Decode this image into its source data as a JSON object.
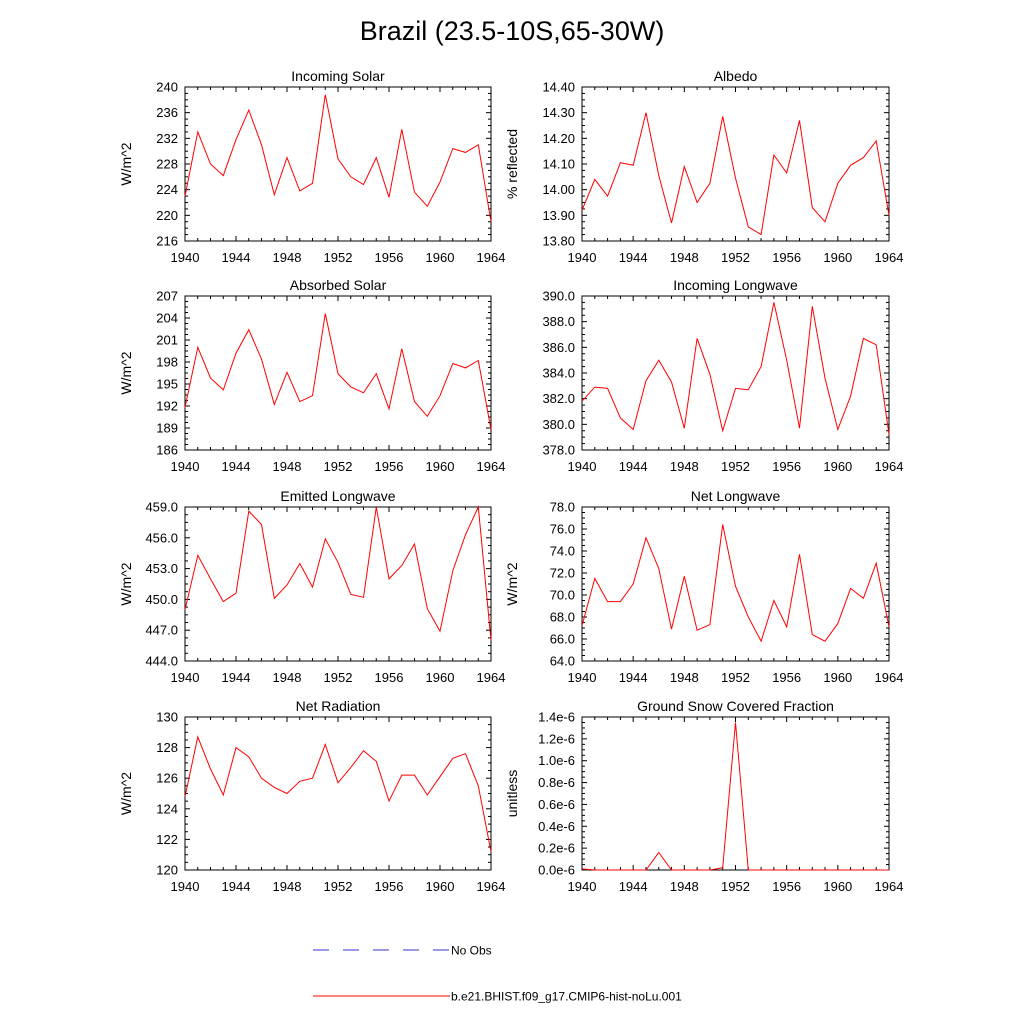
{
  "figure": {
    "title": "Brazil (23.5-10S,65-30W)"
  },
  "legend": {
    "items": [
      {
        "label": "No Obs",
        "color": "#3333cc",
        "style": "dashed"
      },
      {
        "label": "b.e21.BHIST.f09_g17.CMIP6-hist-noLu.001",
        "color": "#ff0000",
        "style": "solid"
      }
    ]
  },
  "chart_data": [
    {
      "type": "line",
      "title": "Incoming Solar",
      "ylabel": "W/m^2",
      "xlabel": "",
      "xlim": [
        1940,
        1964
      ],
      "ylim": [
        216,
        240
      ],
      "xticks": [
        1940,
        1944,
        1948,
        1952,
        1956,
        1960,
        1964
      ],
      "yticks": [
        "216",
        "220",
        "224",
        "228",
        "232",
        "236",
        "240"
      ],
      "grid": false,
      "x": [
        1940,
        1941,
        1942,
        1943,
        1944,
        1945,
        1946,
        1947,
        1948,
        1949,
        1950,
        1951,
        1952,
        1953,
        1954,
        1955,
        1956,
        1957,
        1958,
        1959,
        1960,
        1961,
        1962,
        1963,
        1964
      ],
      "series": [
        {
          "values": [
            223.0,
            233.0,
            228.0,
            226.2,
            231.8,
            236.4,
            231.0,
            223.2,
            229.0,
            223.8,
            225.0,
            238.8,
            228.8,
            226.0,
            224.8,
            229.0,
            222.8,
            233.4,
            223.6,
            221.4,
            225.2,
            230.4,
            229.8,
            231.0,
            219.0
          ]
        }
      ]
    },
    {
      "type": "line",
      "title": "Albedo",
      "ylabel": "% reflected",
      "xlabel": "",
      "xlim": [
        1940,
        1964
      ],
      "ylim": [
        13.8,
        14.4
      ],
      "xticks": [
        1940,
        1944,
        1948,
        1952,
        1956,
        1960,
        1964
      ],
      "yticks": [
        "13.80",
        "13.90",
        "14.00",
        "14.10",
        "14.20",
        "14.30",
        "14.40"
      ],
      "grid": false,
      "x": [
        1940,
        1941,
        1942,
        1943,
        1944,
        1945,
        1946,
        1947,
        1948,
        1949,
        1950,
        1951,
        1952,
        1953,
        1954,
        1955,
        1956,
        1957,
        1958,
        1959,
        1960,
        1961,
        1962,
        1963,
        1964
      ],
      "series": [
        {
          "values": [
            13.92,
            14.04,
            13.975,
            14.105,
            14.095,
            14.3,
            14.055,
            13.87,
            14.09,
            13.95,
            14.025,
            14.285,
            14.045,
            13.855,
            13.825,
            14.135,
            14.065,
            14.27,
            13.93,
            13.875,
            14.025,
            14.095,
            14.125,
            14.19,
            13.9
          ]
        }
      ]
    },
    {
      "type": "line",
      "title": "Absorbed Solar",
      "ylabel": "W/m^2",
      "xlabel": "",
      "xlim": [
        1940,
        1964
      ],
      "ylim": [
        186,
        207
      ],
      "xticks": [
        1940,
        1944,
        1948,
        1952,
        1956,
        1960,
        1964
      ],
      "yticks": [
        "186",
        "189",
        "192",
        "195",
        "198",
        "201",
        "204",
        "207"
      ],
      "grid": false,
      "x": [
        1940,
        1941,
        1942,
        1943,
        1944,
        1945,
        1946,
        1947,
        1948,
        1949,
        1950,
        1951,
        1952,
        1953,
        1954,
        1955,
        1956,
        1957,
        1958,
        1959,
        1960,
        1961,
        1962,
        1963,
        1964
      ],
      "series": [
        {
          "values": [
            191.8,
            200.0,
            195.8,
            194.2,
            199.2,
            202.4,
            198.4,
            192.2,
            196.6,
            192.6,
            193.4,
            204.6,
            196.4,
            194.6,
            193.8,
            196.4,
            191.6,
            199.8,
            192.6,
            190.6,
            193.4,
            197.8,
            197.2,
            198.2,
            188.8
          ]
        }
      ]
    },
    {
      "type": "line",
      "title": "Incoming Longwave",
      "ylabel": "",
      "xlabel": "",
      "xlim": [
        1940,
        1964
      ],
      "ylim": [
        378,
        390
      ],
      "xticks": [
        1940,
        1944,
        1948,
        1952,
        1956,
        1960,
        1964
      ],
      "yticks": [
        "378.0",
        "380.0",
        "382.0",
        "384.0",
        "386.0",
        "388.0",
        "390.0"
      ],
      "grid": false,
      "x": [
        1940,
        1941,
        1942,
        1943,
        1944,
        1945,
        1946,
        1947,
        1948,
        1949,
        1950,
        1951,
        1952,
        1953,
        1954,
        1955,
        1956,
        1957,
        1958,
        1959,
        1960,
        1961,
        1962,
        1963,
        1964
      ],
      "series": [
        {
          "values": [
            381.8,
            382.9,
            382.8,
            380.5,
            379.6,
            383.4,
            385.0,
            383.3,
            379.7,
            386.7,
            383.9,
            379.5,
            382.8,
            382.7,
            384.5,
            389.5,
            385.0,
            379.7,
            389.2,
            383.6,
            379.6,
            382.2,
            386.7,
            386.2,
            379.2
          ]
        }
      ]
    },
    {
      "type": "line",
      "title": "Emitted Longwave",
      "ylabel": "W/m^2",
      "xlabel": "",
      "xlim": [
        1940,
        1964
      ],
      "ylim": [
        444,
        459
      ],
      "xticks": [
        1940,
        1944,
        1948,
        1952,
        1956,
        1960,
        1964
      ],
      "yticks": [
        "444.0",
        "447.0",
        "450.0",
        "453.0",
        "456.0",
        "459.0"
      ],
      "grid": false,
      "x": [
        1940,
        1941,
        1942,
        1943,
        1944,
        1945,
        1946,
        1947,
        1948,
        1949,
        1950,
        1951,
        1952,
        1953,
        1954,
        1955,
        1956,
        1957,
        1958,
        1959,
        1960,
        1961,
        1962,
        1963,
        1964
      ],
      "series": [
        {
          "values": [
            449.0,
            454.3,
            452.0,
            449.8,
            450.6,
            458.6,
            457.3,
            450.1,
            451.4,
            453.5,
            451.2,
            455.9,
            453.6,
            450.5,
            450.2,
            459.0,
            452.0,
            453.3,
            455.4,
            449.1,
            446.9,
            452.8,
            456.3,
            459.0,
            446.0
          ]
        }
      ]
    },
    {
      "type": "line",
      "title": "Net Longwave",
      "ylabel": "W/m^2",
      "xlabel": "",
      "xlim": [
        1940,
        1964
      ],
      "ylim": [
        64,
        78
      ],
      "xticks": [
        1940,
        1944,
        1948,
        1952,
        1956,
        1960,
        1964
      ],
      "yticks": [
        "64.0",
        "66.0",
        "68.0",
        "70.0",
        "72.0",
        "74.0",
        "76.0",
        "78.0"
      ],
      "grid": false,
      "x": [
        1940,
        1941,
        1942,
        1943,
        1944,
        1945,
        1946,
        1947,
        1948,
        1949,
        1950,
        1951,
        1952,
        1953,
        1954,
        1955,
        1956,
        1957,
        1958,
        1959,
        1960,
        1961,
        1962,
        1963,
        1964
      ],
      "series": [
        {
          "values": [
            67.2,
            71.5,
            69.4,
            69.4,
            71.0,
            75.2,
            72.4,
            66.9,
            71.7,
            66.8,
            67.3,
            76.4,
            70.8,
            68.0,
            65.8,
            69.5,
            67.1,
            73.7,
            66.4,
            65.8,
            67.4,
            70.6,
            69.7,
            72.9,
            67.1
          ]
        }
      ]
    },
    {
      "type": "line",
      "title": "Net Radiation",
      "ylabel": "W/m^2",
      "xlabel": "",
      "xlim": [
        1940,
        1964
      ],
      "ylim": [
        120,
        130
      ],
      "xticks": [
        1940,
        1944,
        1948,
        1952,
        1956,
        1960,
        1964
      ],
      "yticks": [
        "120",
        "122",
        "124",
        "126",
        "128",
        "130"
      ],
      "grid": false,
      "x": [
        1940,
        1941,
        1942,
        1943,
        1944,
        1945,
        1946,
        1947,
        1948,
        1949,
        1950,
        1951,
        1952,
        1953,
        1954,
        1955,
        1956,
        1957,
        1958,
        1959,
        1960,
        1961,
        1962,
        1963,
        1964
      ],
      "series": [
        {
          "values": [
            124.8,
            128.7,
            126.6,
            124.9,
            128.0,
            127.4,
            126.0,
            125.4,
            125.0,
            125.8,
            126.0,
            128.2,
            125.7,
            126.7,
            127.8,
            127.1,
            124.5,
            126.2,
            126.2,
            124.9,
            126.1,
            127.3,
            127.6,
            125.5,
            121.2
          ]
        }
      ]
    },
    {
      "type": "line",
      "title": "Ground Snow Covered Fraction",
      "ylabel": "unitless",
      "xlabel": "",
      "xlim": [
        1940,
        1964
      ],
      "ylim": [
        0,
        1.4e-06
      ],
      "xticks": [
        1940,
        1944,
        1948,
        1952,
        1956,
        1960,
        1964
      ],
      "yticks": [
        "0.0e-6",
        "0.2e-6",
        "0.4e-6",
        "0.6e-6",
        "0.8e-6",
        "1.0e-6",
        "1.2e-6",
        "1.4e-6"
      ],
      "grid": false,
      "x": [
        1940,
        1941,
        1942,
        1943,
        1944,
        1945,
        1946,
        1947,
        1948,
        1949,
        1950,
        1951,
        1952,
        1953,
        1954,
        1955,
        1956,
        1957,
        1958,
        1959,
        1960,
        1961,
        1962,
        1963,
        1964
      ],
      "series": [
        {
          "values": [
            1e-08,
            0,
            0,
            0,
            0,
            0,
            1.6e-07,
            0,
            0,
            0,
            0,
            2e-08,
            1.35e-06,
            0,
            0,
            0,
            0,
            0,
            0,
            0,
            0,
            0,
            0,
            0,
            0
          ]
        }
      ]
    }
  ]
}
